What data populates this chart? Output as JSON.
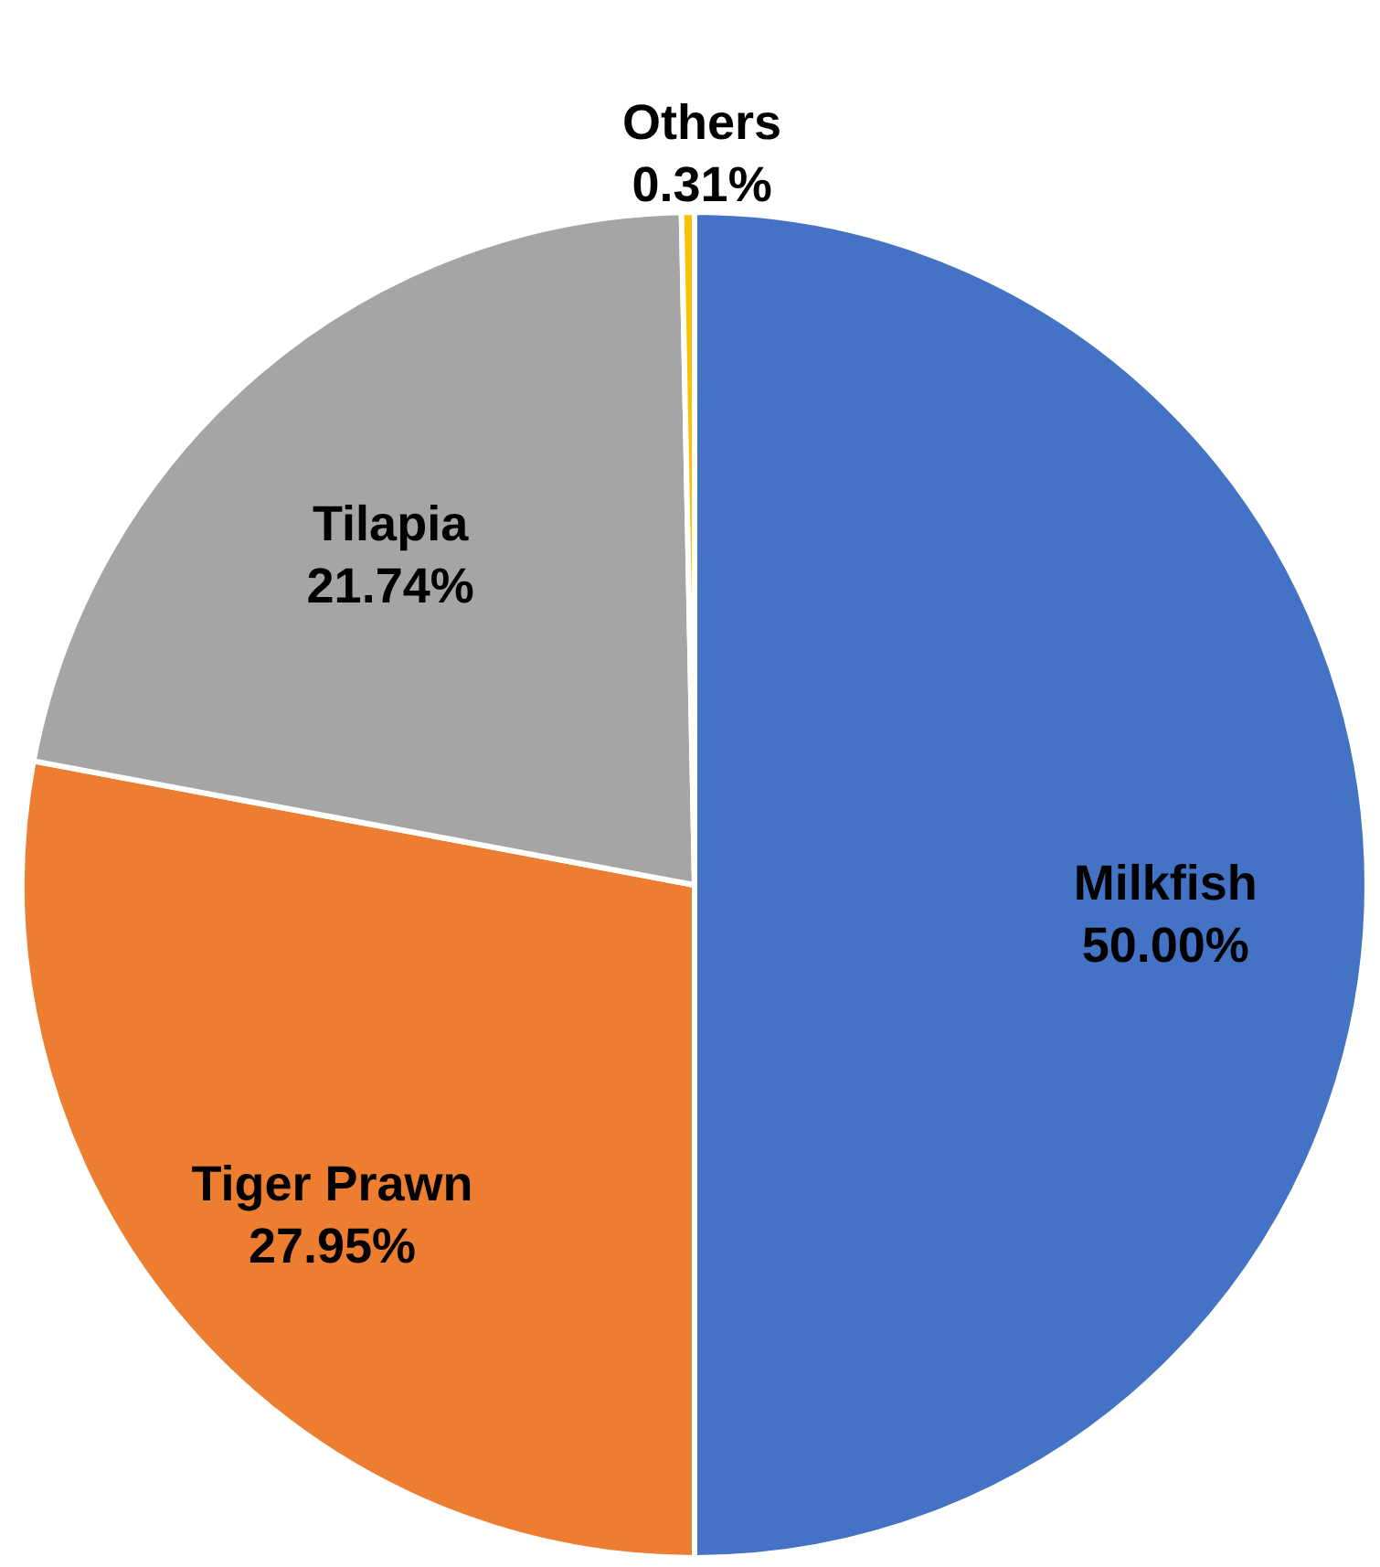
{
  "chart_data": {
    "type": "pie",
    "categories": [
      "Milkfish",
      "Tiger Prawn",
      "Tilapia",
      "Others"
    ],
    "values": [
      50.0,
      27.95,
      21.74,
      0.31
    ],
    "colors": [
      "#4472c4",
      "#ed7d31",
      "#a5a5a5",
      "#ffc000"
    ],
    "value_labels": [
      "50.00%",
      "27.95%",
      "21.74%",
      "0.31%"
    ]
  }
}
